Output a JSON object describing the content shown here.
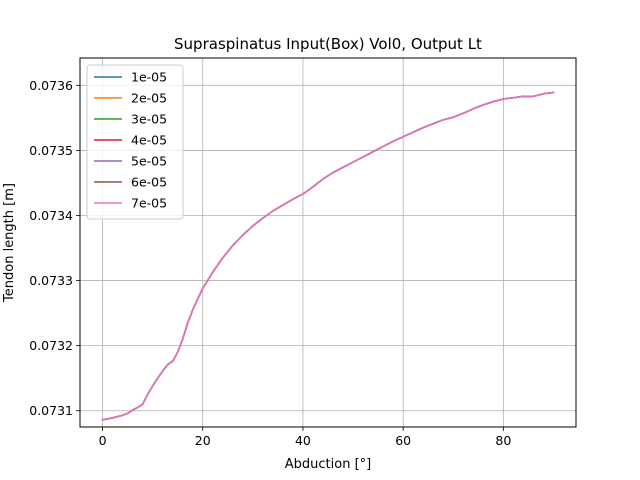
{
  "chart_data": {
    "type": "line",
    "title": "Supraspinatus Input(Box) Vol0, Output Lt",
    "xlabel": "Abduction [°]",
    "ylabel": "Tendon length [m]",
    "xlim": [
      -4.5,
      94.5
    ],
    "ylim": [
      0.073075,
      0.073642
    ],
    "xticks": [
      0,
      20,
      40,
      60,
      80
    ],
    "yticks": [
      0.0731,
      0.0732,
      0.0733,
      0.0734,
      0.0735,
      0.0736
    ],
    "grid": true,
    "legend_position": "upper left",
    "x": [
      0,
      2,
      4,
      5,
      6,
      7,
      8,
      9,
      10,
      11,
      12,
      13,
      14,
      15,
      16,
      17,
      18,
      19,
      20,
      22,
      24,
      26,
      28,
      30,
      32,
      34,
      36,
      38,
      40,
      42,
      44,
      46,
      48,
      50,
      52,
      54,
      56,
      58,
      60,
      62,
      64,
      66,
      68,
      70,
      72,
      74,
      76,
      78,
      80,
      82,
      84,
      86,
      88,
      90
    ],
    "series": [
      {
        "name": "1e-05",
        "color": "#1f77b4",
        "values": [
          0.073086,
          0.073089,
          0.073093,
          0.073096,
          0.073101,
          0.073105,
          0.07311,
          0.073125,
          0.073138,
          0.07315,
          0.073161,
          0.073171,
          0.073176,
          0.07319,
          0.07321,
          0.073235,
          0.073255,
          0.073272,
          0.073288,
          0.073313,
          0.073335,
          0.073354,
          0.07337,
          0.073384,
          0.073396,
          0.073407,
          0.073416,
          0.073425,
          0.073433,
          0.073444,
          0.073456,
          0.073466,
          0.073474,
          0.073482,
          0.07349,
          0.073498,
          0.073506,
          0.073514,
          0.073521,
          0.073528,
          0.073535,
          0.073541,
          0.073547,
          0.073551,
          0.073557,
          0.073564,
          0.07357,
          0.073575,
          0.073579,
          0.073581,
          0.073583,
          0.073583,
          0.073587,
          0.073589
        ]
      },
      {
        "name": "2e-05",
        "color": "#ff7f0e",
        "values": [
          0.073086,
          0.073089,
          0.073093,
          0.073096,
          0.073101,
          0.073105,
          0.07311,
          0.073125,
          0.073138,
          0.07315,
          0.073161,
          0.073171,
          0.073176,
          0.07319,
          0.07321,
          0.073235,
          0.073255,
          0.073272,
          0.073288,
          0.073313,
          0.073335,
          0.073354,
          0.07337,
          0.073384,
          0.073396,
          0.073407,
          0.073416,
          0.073425,
          0.073433,
          0.073444,
          0.073456,
          0.073466,
          0.073474,
          0.073482,
          0.07349,
          0.073498,
          0.073506,
          0.073514,
          0.073521,
          0.073528,
          0.073535,
          0.073541,
          0.073547,
          0.073551,
          0.073557,
          0.073564,
          0.07357,
          0.073575,
          0.073579,
          0.073581,
          0.073583,
          0.073583,
          0.073587,
          0.073589
        ]
      },
      {
        "name": "3e-05",
        "color": "#2ca02c",
        "values": [
          0.073086,
          0.073089,
          0.073093,
          0.073096,
          0.073101,
          0.073105,
          0.07311,
          0.073125,
          0.073138,
          0.07315,
          0.073161,
          0.073171,
          0.073176,
          0.07319,
          0.07321,
          0.073235,
          0.073255,
          0.073272,
          0.073288,
          0.073313,
          0.073335,
          0.073354,
          0.07337,
          0.073384,
          0.073396,
          0.073407,
          0.073416,
          0.073425,
          0.073433,
          0.073444,
          0.073456,
          0.073466,
          0.073474,
          0.073482,
          0.07349,
          0.073498,
          0.073506,
          0.073514,
          0.073521,
          0.073528,
          0.073535,
          0.073541,
          0.073547,
          0.073551,
          0.073557,
          0.073564,
          0.07357,
          0.073575,
          0.073579,
          0.073581,
          0.073583,
          0.073583,
          0.073587,
          0.073589
        ]
      },
      {
        "name": "4e-05",
        "color": "#d62728",
        "values": [
          0.073086,
          0.073089,
          0.073093,
          0.073096,
          0.073101,
          0.073105,
          0.07311,
          0.073125,
          0.073138,
          0.07315,
          0.073161,
          0.073171,
          0.073176,
          0.07319,
          0.07321,
          0.073235,
          0.073255,
          0.073272,
          0.073288,
          0.073313,
          0.073335,
          0.073354,
          0.07337,
          0.073384,
          0.073396,
          0.073407,
          0.073416,
          0.073425,
          0.073433,
          0.073444,
          0.073456,
          0.073466,
          0.073474,
          0.073482,
          0.07349,
          0.073498,
          0.073506,
          0.073514,
          0.073521,
          0.073528,
          0.073535,
          0.073541,
          0.073547,
          0.073551,
          0.073557,
          0.073564,
          0.07357,
          0.073575,
          0.073579,
          0.073581,
          0.073583,
          0.073583,
          0.073587,
          0.073589
        ]
      },
      {
        "name": "5e-05",
        "color": "#9467bd",
        "values": [
          0.073086,
          0.073089,
          0.073093,
          0.073096,
          0.073101,
          0.073105,
          0.07311,
          0.073125,
          0.073138,
          0.07315,
          0.073161,
          0.073171,
          0.073176,
          0.07319,
          0.07321,
          0.073235,
          0.073255,
          0.073272,
          0.073288,
          0.073313,
          0.073335,
          0.073354,
          0.07337,
          0.073384,
          0.073396,
          0.073407,
          0.073416,
          0.073425,
          0.073433,
          0.073444,
          0.073456,
          0.073466,
          0.073474,
          0.073482,
          0.07349,
          0.073498,
          0.073506,
          0.073514,
          0.073521,
          0.073528,
          0.073535,
          0.073541,
          0.073547,
          0.073551,
          0.073557,
          0.073564,
          0.07357,
          0.073575,
          0.073579,
          0.073581,
          0.073583,
          0.073583,
          0.073587,
          0.073589
        ]
      },
      {
        "name": "6e-05",
        "color": "#8c564b",
        "values": [
          0.073086,
          0.073089,
          0.073093,
          0.073096,
          0.073101,
          0.073105,
          0.07311,
          0.073125,
          0.073138,
          0.07315,
          0.073161,
          0.073171,
          0.073176,
          0.07319,
          0.07321,
          0.073235,
          0.073255,
          0.073272,
          0.073288,
          0.073313,
          0.073335,
          0.073354,
          0.07337,
          0.073384,
          0.073396,
          0.073407,
          0.073416,
          0.073425,
          0.073433,
          0.073444,
          0.073456,
          0.073466,
          0.073474,
          0.073482,
          0.07349,
          0.073498,
          0.073506,
          0.073514,
          0.073521,
          0.073528,
          0.073535,
          0.073541,
          0.073547,
          0.073551,
          0.073557,
          0.073564,
          0.07357,
          0.073575,
          0.073579,
          0.073581,
          0.073583,
          0.073583,
          0.073587,
          0.073589
        ]
      },
      {
        "name": "7e-05",
        "color": "#e377c2",
        "values": [
          0.073086,
          0.073089,
          0.073093,
          0.073096,
          0.073101,
          0.073105,
          0.07311,
          0.073125,
          0.073138,
          0.07315,
          0.073161,
          0.073171,
          0.073176,
          0.07319,
          0.07321,
          0.073235,
          0.073255,
          0.073272,
          0.073288,
          0.073313,
          0.073335,
          0.073354,
          0.07337,
          0.073384,
          0.073396,
          0.073407,
          0.073416,
          0.073425,
          0.073433,
          0.073444,
          0.073456,
          0.073466,
          0.073474,
          0.073482,
          0.07349,
          0.073498,
          0.073506,
          0.073514,
          0.073521,
          0.073528,
          0.073535,
          0.073541,
          0.073547,
          0.073551,
          0.073557,
          0.073564,
          0.07357,
          0.073575,
          0.073579,
          0.073581,
          0.073583,
          0.073583,
          0.073587,
          0.073589
        ]
      }
    ]
  }
}
